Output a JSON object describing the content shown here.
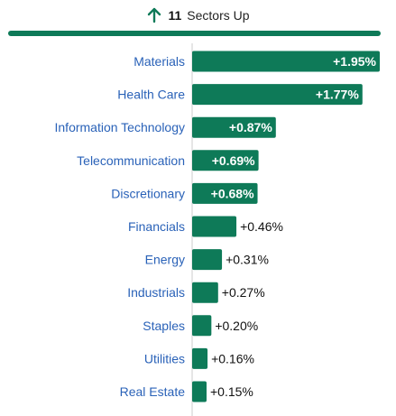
{
  "header": {
    "icon": "up-arrow-icon",
    "count": "11",
    "label": "Sectors Up"
  },
  "colors": {
    "bar": "#0e7a58",
    "accent_bar": "#0e7a58",
    "arrow": "#0e7a58",
    "category": "#2a62b8",
    "value_inside": "#ffffff",
    "value_outside": "#111111",
    "axis": "#cccccc"
  },
  "chart_data": {
    "type": "bar",
    "orientation": "horizontal",
    "categories": [
      "Materials",
      "Health Care",
      "Information Technology",
      "Telecommunication",
      "Discretionary",
      "Financials",
      "Energy",
      "Industrials",
      "Staples",
      "Utilities",
      "Real Estate"
    ],
    "values": [
      1.95,
      1.77,
      0.87,
      0.69,
      0.68,
      0.46,
      0.31,
      0.27,
      0.2,
      0.16,
      0.15
    ],
    "value_labels": [
      "+1.95%",
      "+1.77%",
      "+0.87%",
      "+0.69%",
      "+0.68%",
      "+0.46%",
      "+0.31%",
      "+0.27%",
      "+0.20%",
      "+0.16%",
      "+0.15%"
    ],
    "title": "",
    "xlabel": "",
    "ylabel": "",
    "xlim": [
      0,
      1.95
    ],
    "grid": false,
    "legend": "none"
  }
}
